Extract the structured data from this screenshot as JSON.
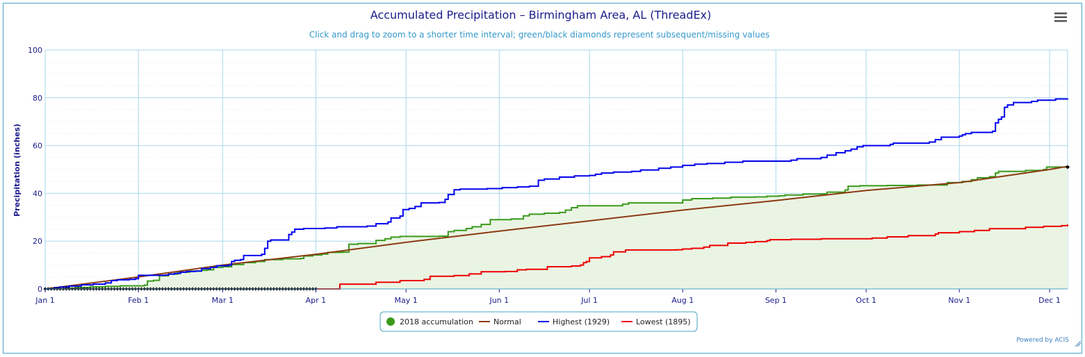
{
  "chart_data": {
    "type": "line",
    "title": "Accumulated Precipitation – Birmingham Area, AL (ThreadEx)",
    "subtitle": "Click and drag to zoom to a shorter time interval; green/black diamonds represent subsequent/missing values",
    "ylabel": "Precipitation (inches)",
    "xlabel": "",
    "ylim": [
      0,
      100
    ],
    "xlim_day": [
      0,
      340
    ],
    "yticks": [
      0,
      20,
      40,
      60,
      80,
      100
    ],
    "xticks": [
      {
        "label": "Jan 1",
        "day": 0
      },
      {
        "label": "Feb 1",
        "day": 31
      },
      {
        "label": "Mar 1",
        "day": 59
      },
      {
        "label": "Apr 1",
        "day": 90
      },
      {
        "label": "May 1",
        "day": 120
      },
      {
        "label": "Jun 1",
        "day": 151
      },
      {
        "label": "Jul 1",
        "day": 181
      },
      {
        "label": "Aug 1",
        "day": 212
      },
      {
        "label": "Sep 1",
        "day": 243
      },
      {
        "label": "Oct 1",
        "day": 273
      },
      {
        "label": "Nov 1",
        "day": 304
      },
      {
        "label": "Dec 1",
        "day": 334
      }
    ],
    "grid": true,
    "legend_position": "bottom",
    "series": [
      {
        "name": "2018 accumulation",
        "style": "step-area",
        "color": "#3a9a1c",
        "fill": "#eaf4e3",
        "points": [
          [
            0,
            0
          ],
          [
            6,
            0.3
          ],
          [
            10,
            0.6
          ],
          [
            15,
            0.9
          ],
          [
            20,
            1.1
          ],
          [
            25,
            1.3
          ],
          [
            33,
            1.6
          ],
          [
            34,
            3.3
          ],
          [
            36,
            3.6
          ],
          [
            38,
            5.5
          ],
          [
            41,
            6.2
          ],
          [
            44,
            7.0
          ],
          [
            48,
            7.5
          ],
          [
            52,
            7.8
          ],
          [
            54,
            8.0
          ],
          [
            56,
            9.0
          ],
          [
            59,
            9.3
          ],
          [
            62,
            10.2
          ],
          [
            66,
            11.0
          ],
          [
            70,
            11.5
          ],
          [
            73,
            12.3
          ],
          [
            79,
            12.6
          ],
          [
            85,
            12.8
          ],
          [
            86,
            13.8
          ],
          [
            89,
            14.2
          ],
          [
            92,
            14.6
          ],
          [
            94,
            15.3
          ],
          [
            99,
            15.4
          ],
          [
            101,
            18.7
          ],
          [
            104,
            19.0
          ],
          [
            108,
            19.0
          ],
          [
            110,
            20.3
          ],
          [
            113,
            21.0
          ],
          [
            115,
            21.7
          ],
          [
            118,
            22.0
          ],
          [
            131,
            22.1
          ],
          [
            134,
            24.0
          ],
          [
            136,
            24.5
          ],
          [
            140,
            25.3
          ],
          [
            142,
            26.0
          ],
          [
            145,
            27.0
          ],
          [
            148,
            29.0
          ],
          [
            155,
            29.3
          ],
          [
            159,
            30.6
          ],
          [
            161,
            31.3
          ],
          [
            163,
            31.3
          ],
          [
            166,
            31.7
          ],
          [
            171,
            32.0
          ],
          [
            173,
            33.0
          ],
          [
            175,
            34.0
          ],
          [
            177,
            34.8
          ],
          [
            188,
            34.8
          ],
          [
            192,
            35.5
          ],
          [
            194,
            36.0
          ],
          [
            210,
            36.0
          ],
          [
            212,
            37.2
          ],
          [
            215,
            37.8
          ],
          [
            222,
            38.0
          ],
          [
            228,
            38.4
          ],
          [
            236,
            38.5
          ],
          [
            240,
            38.8
          ],
          [
            244,
            39.0
          ],
          [
            246,
            39.3
          ],
          [
            252,
            39.7
          ],
          [
            258,
            39.8
          ],
          [
            260,
            40.5
          ],
          [
            266,
            41.4
          ],
          [
            267,
            43.0
          ],
          [
            271,
            43.2
          ],
          [
            280,
            43.3
          ],
          [
            290,
            43.5
          ],
          [
            300,
            44.5
          ],
          [
            305,
            45.0
          ],
          [
            308,
            45.7
          ],
          [
            310,
            46.5
          ],
          [
            314,
            47.0
          ],
          [
            316,
            48.5
          ],
          [
            317,
            49.2
          ],
          [
            326,
            49.6
          ],
          [
            332,
            50.0
          ],
          [
            333,
            51.0
          ],
          [
            340,
            51.0
          ]
        ]
      },
      {
        "name": "Normal",
        "style": "line",
        "color": "#8b3a12",
        "points": [
          [
            0,
            0
          ],
          [
            31,
            5.0
          ],
          [
            59,
            10.0
          ],
          [
            90,
            14.5
          ],
          [
            120,
            19.5
          ],
          [
            151,
            24.2
          ],
          [
            181,
            28.5
          ],
          [
            212,
            33.0
          ],
          [
            243,
            37.0
          ],
          [
            273,
            41.2
          ],
          [
            304,
            44.5
          ],
          [
            334,
            50.0
          ],
          [
            340,
            51.3
          ]
        ]
      },
      {
        "name": "Highest (1929)",
        "style": "step-line",
        "color": "#0000ee",
        "points": [
          [
            0,
            0
          ],
          [
            3,
            0.5
          ],
          [
            5,
            0.8
          ],
          [
            8,
            1.2
          ],
          [
            12,
            1.7
          ],
          [
            16,
            2.0
          ],
          [
            20,
            2.5
          ],
          [
            22,
            3.5
          ],
          [
            24,
            3.8
          ],
          [
            28,
            4.0
          ],
          [
            30,
            4.3
          ],
          [
            31,
            5.7
          ],
          [
            40,
            5.8
          ],
          [
            41,
            6.2
          ],
          [
            43,
            6.5
          ],
          [
            45,
            7.0
          ],
          [
            47,
            7.3
          ],
          [
            50,
            7.5
          ],
          [
            52,
            8.5
          ],
          [
            55,
            9.0
          ],
          [
            57,
            9.7
          ],
          [
            61,
            10.0
          ],
          [
            62,
            11.5
          ],
          [
            63,
            12.0
          ],
          [
            65,
            12.3
          ],
          [
            66,
            14.0
          ],
          [
            72,
            14.5
          ],
          [
            73,
            17.0
          ],
          [
            74,
            20.0
          ],
          [
            75,
            20.5
          ],
          [
            80,
            20.5
          ],
          [
            81,
            22.8
          ],
          [
            82,
            23.8
          ],
          [
            83,
            25.0
          ],
          [
            86,
            25.3
          ],
          [
            93,
            25.5
          ],
          [
            97,
            26.0
          ],
          [
            107,
            26.3
          ],
          [
            110,
            27.3
          ],
          [
            114,
            28.0
          ],
          [
            115,
            29.7
          ],
          [
            118,
            30.5
          ],
          [
            119,
            33.2
          ],
          [
            121,
            33.7
          ],
          [
            123,
            34.5
          ],
          [
            125,
            36.0
          ],
          [
            131,
            36.2
          ],
          [
            133,
            37.5
          ],
          [
            134,
            39.5
          ],
          [
            136,
            41.5
          ],
          [
            138,
            41.8
          ],
          [
            147,
            42.0
          ],
          [
            152,
            42.4
          ],
          [
            157,
            42.7
          ],
          [
            161,
            43.0
          ],
          [
            164,
            45.5
          ],
          [
            166,
            46.0
          ],
          [
            171,
            46.8
          ],
          [
            176,
            47.3
          ],
          [
            181,
            47.5
          ],
          [
            183,
            48.0
          ],
          [
            185,
            48.5
          ],
          [
            189,
            48.9
          ],
          [
            195,
            49.2
          ],
          [
            198,
            49.8
          ],
          [
            204,
            50.5
          ],
          [
            208,
            51.0
          ],
          [
            212,
            51.7
          ],
          [
            216,
            52.2
          ],
          [
            220,
            52.5
          ],
          [
            226,
            53.0
          ],
          [
            232,
            53.5
          ],
          [
            248,
            53.9
          ],
          [
            250,
            54.5
          ],
          [
            258,
            55.0
          ],
          [
            260,
            56.0
          ],
          [
            263,
            57.0
          ],
          [
            266,
            57.8
          ],
          [
            268,
            58.5
          ],
          [
            270,
            59.5
          ],
          [
            272,
            60.0
          ],
          [
            281,
            60.5
          ],
          [
            282,
            61.0
          ],
          [
            294,
            61.5
          ],
          [
            296,
            62.5
          ],
          [
            298,
            63.5
          ],
          [
            304,
            64.0
          ],
          [
            305,
            64.5
          ],
          [
            306,
            65.0
          ],
          [
            308,
            65.5
          ],
          [
            315,
            66.0
          ],
          [
            316,
            69.5
          ],
          [
            317,
            71.0
          ],
          [
            318,
            72.0
          ],
          [
            319,
            76.0
          ],
          [
            320,
            77.0
          ],
          [
            322,
            78.0
          ],
          [
            328,
            78.5
          ],
          [
            330,
            79.0
          ],
          [
            335,
            79.0
          ],
          [
            336,
            79.5
          ],
          [
            340,
            79.7
          ]
        ]
      },
      {
        "name": "Lowest (1895)",
        "style": "step-line",
        "color": "#ee0000",
        "points": [
          [
            0,
            0
          ],
          [
            97,
            0
          ],
          [
            98,
            2.0
          ],
          [
            109,
            2.0
          ],
          [
            110,
            2.8
          ],
          [
            116,
            2.8
          ],
          [
            118,
            3.5
          ],
          [
            125,
            3.5
          ],
          [
            126,
            4.0
          ],
          [
            128,
            5.3
          ],
          [
            136,
            5.6
          ],
          [
            141,
            6.3
          ],
          [
            145,
            7.2
          ],
          [
            153,
            7.3
          ],
          [
            157,
            8.0
          ],
          [
            160,
            8.2
          ],
          [
            167,
            9.3
          ],
          [
            175,
            9.6
          ],
          [
            178,
            10.0
          ],
          [
            179,
            11.0
          ],
          [
            180,
            11.5
          ],
          [
            181,
            13.0
          ],
          [
            185,
            13.5
          ],
          [
            188,
            14.2
          ],
          [
            189,
            15.5
          ],
          [
            193,
            16.3
          ],
          [
            210,
            16.4
          ],
          [
            212,
            16.7
          ],
          [
            215,
            17.0
          ],
          [
            219,
            17.5
          ],
          [
            221,
            18.2
          ],
          [
            227,
            19.2
          ],
          [
            233,
            19.5
          ],
          [
            236,
            19.8
          ],
          [
            240,
            20.2
          ],
          [
            241,
            20.6
          ],
          [
            248,
            20.8
          ],
          [
            258,
            21.0
          ],
          [
            275,
            21.3
          ],
          [
            280,
            21.8
          ],
          [
            287,
            22.3
          ],
          [
            292,
            22.3
          ],
          [
            296,
            23.0
          ],
          [
            297,
            23.5
          ],
          [
            304,
            24.0
          ],
          [
            309,
            24.5
          ],
          [
            314,
            25.2
          ],
          [
            326,
            25.8
          ],
          [
            332,
            26.2
          ],
          [
            335,
            26.2
          ],
          [
            338,
            26.5
          ],
          [
            340,
            27.0
          ]
        ]
      }
    ],
    "missing_markers": {
      "color": "#000000",
      "day_start": 0,
      "day_end": 90,
      "y": 0
    },
    "end_marker": {
      "color": "#000000",
      "day": 340,
      "y": 51.0
    },
    "legend": [
      {
        "name": "2018 accumulation",
        "symbol": "circle",
        "color": "#3a9a1c"
      },
      {
        "name": "Normal",
        "symbol": "line",
        "color": "#8b3a12"
      },
      {
        "name": "Highest (1929)",
        "symbol": "line",
        "color": "#0000ee"
      },
      {
        "name": "Lowest (1895)",
        "symbol": "line",
        "color": "#ee0000"
      }
    ]
  },
  "credits": "Powered by ACIS",
  "menu_icon": "hamburger-menu-icon"
}
